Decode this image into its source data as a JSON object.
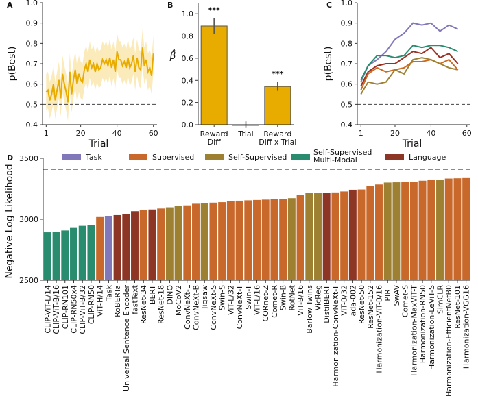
{
  "chart_data": [
    {
      "type": "line",
      "panel": "A",
      "xlabel": "Trial",
      "ylabel": "p(Best)",
      "xlim": [
        -1,
        62
      ],
      "ylim": [
        0.4,
        1.0
      ],
      "xticks": [
        1,
        20,
        40,
        60
      ],
      "yticks": [
        0.4,
        0.5,
        0.6,
        0.7,
        0.8,
        0.9,
        1.0
      ],
      "chance_line": 0.5,
      "color": "#e8ab00",
      "band_color": "#f9dc8c",
      "x": [
        1,
        2,
        3,
        4,
        5,
        6,
        7,
        8,
        9,
        10,
        11,
        12,
        13,
        14,
        15,
        16,
        17,
        18,
        19,
        20,
        21,
        22,
        23,
        24,
        25,
        26,
        27,
        28,
        29,
        30,
        31,
        32,
        33,
        34,
        35,
        36,
        37,
        38,
        39,
        40,
        41,
        42,
        43,
        44,
        45,
        46,
        47,
        48,
        49,
        50,
        51,
        52,
        53,
        54,
        55,
        56,
        57,
        58,
        59,
        60
      ],
      "y": [
        0.56,
        0.57,
        0.52,
        0.55,
        0.6,
        0.52,
        0.57,
        0.62,
        0.53,
        0.65,
        0.6,
        0.56,
        0.51,
        0.66,
        0.55,
        0.62,
        0.67,
        0.6,
        0.65,
        0.62,
        0.61,
        0.67,
        0.7,
        0.66,
        0.72,
        0.68,
        0.7,
        0.66,
        0.7,
        0.67,
        0.68,
        0.72,
        0.7,
        0.72,
        0.69,
        0.73,
        0.68,
        0.72,
        0.66,
        0.76,
        0.72,
        0.72,
        0.69,
        0.71,
        0.68,
        0.73,
        0.68,
        0.7,
        0.74,
        0.66,
        0.73,
        0.68,
        0.67,
        0.78,
        0.69,
        0.72,
        0.66,
        0.68,
        0.64,
        0.75
      ],
      "ci": 0.09
    },
    {
      "type": "bar",
      "panel": "B",
      "ylabel": "β̂",
      "categories": [
        [
          "Reward",
          "Diff"
        ],
        [
          "Trial"
        ],
        [
          "Reward",
          "Diff x Trial"
        ]
      ],
      "values": [
        0.89,
        0.0,
        0.345
      ],
      "errors": [
        0.07,
        0.03,
        0.04
      ],
      "significance": [
        "***",
        "",
        "***"
      ],
      "ylim": [
        0.0,
        1.1
      ],
      "yticks": [
        0.0,
        0.2,
        0.4,
        0.6,
        0.8,
        1.0
      ],
      "color": "#e8ab00"
    },
    {
      "type": "line",
      "panel": "C",
      "xlabel": "Trial",
      "ylabel": "p(Best)",
      "xlim": [
        -1,
        62
      ],
      "ylim": [
        0.4,
        1.0
      ],
      "xticks": [
        1,
        20,
        40,
        60
      ],
      "yticks": [
        0.4,
        0.5,
        0.6,
        0.7,
        0.8,
        0.9,
        1.0
      ],
      "chance_line": 0.5,
      "x": [
        1,
        5,
        10,
        15,
        20,
        25,
        30,
        35,
        40,
        45,
        50,
        55
      ],
      "series": [
        {
          "color": "#8078b8",
          "values": [
            0.61,
            0.69,
            0.72,
            0.76,
            0.82,
            0.85,
            0.9,
            0.89,
            0.9,
            0.86,
            0.89,
            0.87
          ]
        },
        {
          "color": "#2a8c6e",
          "values": [
            0.62,
            0.69,
            0.74,
            0.74,
            0.73,
            0.74,
            0.79,
            0.78,
            0.79,
            0.79,
            0.78,
            0.76
          ]
        },
        {
          "color": "#9b2f22",
          "values": [
            0.59,
            0.66,
            0.69,
            0.7,
            0.7,
            0.73,
            0.76,
            0.75,
            0.78,
            0.73,
            0.75,
            0.7
          ]
        },
        {
          "color": "#cc6a1f",
          "values": [
            0.57,
            0.65,
            0.68,
            0.66,
            0.67,
            0.68,
            0.71,
            0.71,
            0.72,
            0.7,
            0.72,
            0.67
          ]
        },
        {
          "color": "#9e8032",
          "values": [
            0.55,
            0.61,
            0.6,
            0.61,
            0.67,
            0.65,
            0.72,
            0.73,
            0.72,
            0.7,
            0.68,
            0.67
          ]
        }
      ]
    },
    {
      "type": "bar",
      "panel": "D",
      "ylabel": "Negative Log Likelihood",
      "ylim": [
        2500,
        3500
      ],
      "yticks": [
        2500,
        3000,
        3500
      ],
      "reference_line": 3410,
      "legend": [
        {
          "name": [
            "Task"
          ],
          "color": "#8078b8"
        },
        {
          "name": [
            "Supervised"
          ],
          "color": "#c8682a"
        },
        {
          "name": [
            "Self-Supervised"
          ],
          "color": "#9e8032"
        },
        {
          "name": [
            "Self-Supervised",
            "Multi-Modal"
          ],
          "color": "#2a8c6e"
        },
        {
          "name": [
            "Language"
          ],
          "color": "#8e3626"
        }
      ],
      "categories": [
        "CLIP-ViT-L/14",
        "CLIP-ViT-B/16",
        "CLIP-RN101",
        "CLIP-RN50x4",
        "CLIP-ViT-B/32",
        "CLIP-RN50",
        "ViT-H/14",
        "Task",
        "RoBERTa",
        "Universal Sentence Encoder",
        "fastText",
        "ResNet-34",
        "BERT",
        "ResNet-18",
        "DINO",
        "MoCoV2",
        "ConvNeXt-L",
        "ConvNeXt-B",
        "Jigsaw",
        "ConvNeXt-S",
        "Swin-S",
        "ViT-L/32",
        "ConvNeXt-T",
        "Swin-T",
        "ViT-L/16",
        "CORnet-Z",
        "Comet-R",
        "Swin-B",
        "RotNet",
        "ViT-B/16",
        "Barlow Twins",
        "VicReg",
        "DistilBERT",
        "Harmonization-ConvNeXt-T",
        "ViT-B/32",
        "ada-002",
        "ResNet-50",
        "ResNet-152",
        "Harmonization-ViT-B/16",
        "PIRL",
        "SwAV",
        "Comet-S",
        "Harmonization-MaxViT-T",
        "Harmonization-RN50",
        "Harmonization-LeViT-S",
        "SimCLR",
        "Harmonization-EfficientNetB0",
        "ResNet-101",
        "Harmonization-VGG16"
      ],
      "values": [
        2893,
        2896,
        2908,
        2929,
        2946,
        2950,
        3018,
        3024,
        3034,
        3040,
        3066,
        3074,
        3080,
        3088,
        3098,
        3109,
        3114,
        3127,
        3132,
        3136,
        3140,
        3150,
        3152,
        3155,
        3158,
        3161,
        3165,
        3168,
        3173,
        3197,
        3216,
        3217,
        3219,
        3220,
        3228,
        3242,
        3244,
        3275,
        3285,
        3301,
        3303,
        3305,
        3307,
        3316,
        3322,
        3326,
        3334,
        3336,
        3338
      ],
      "colors": [
        "#2a8c6e",
        "#2a8c6e",
        "#2a8c6e",
        "#2a8c6e",
        "#2a8c6e",
        "#2a8c6e",
        "#c8682a",
        "#8078b8",
        "#8e3626",
        "#8e3626",
        "#8e3626",
        "#c8682a",
        "#8e3626",
        "#c8682a",
        "#9e8032",
        "#9e8032",
        "#c8682a",
        "#c8682a",
        "#9e8032",
        "#c8682a",
        "#c8682a",
        "#c8682a",
        "#c8682a",
        "#c8682a",
        "#c8682a",
        "#c8682a",
        "#c8682a",
        "#c8682a",
        "#9e8032",
        "#c8682a",
        "#9e8032",
        "#9e8032",
        "#8e3626",
        "#c8682a",
        "#c8682a",
        "#8e3626",
        "#c8682a",
        "#c8682a",
        "#c8682a",
        "#9e8032",
        "#9e8032",
        "#c8682a",
        "#c8682a",
        "#c8682a",
        "#c8682a",
        "#9e8032",
        "#c8682a",
        "#c8682a",
        "#c8682a"
      ]
    }
  ],
  "panel_labels": [
    "A",
    "B",
    "C",
    "D"
  ]
}
